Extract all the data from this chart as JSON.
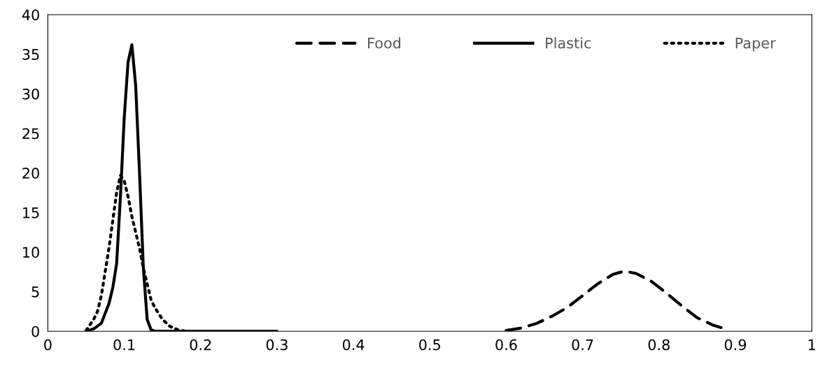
{
  "chart_data": {
    "type": "line",
    "series": [
      {
        "name": "Food",
        "color": "#000000",
        "line_style": "dashed",
        "x": [
          0.6,
          0.62,
          0.64,
          0.66,
          0.68,
          0.7,
          0.72,
          0.74,
          0.755,
          0.77,
          0.79,
          0.81,
          0.83,
          0.85,
          0.87,
          0.89
        ],
        "values": [
          0.1,
          0.4,
          1.0,
          1.9,
          3.0,
          4.5,
          6.0,
          7.2,
          7.6,
          7.3,
          6.3,
          4.8,
          3.2,
          1.7,
          0.8,
          0.2
        ]
      },
      {
        "name": "Plastic",
        "color": "#000000",
        "line_style": "solid",
        "x": [
          0.05,
          0.06,
          0.07,
          0.08,
          0.085,
          0.09,
          0.095,
          0.1,
          0.105,
          0.11,
          0.115,
          0.12,
          0.125,
          0.13,
          0.135,
          0.14,
          0.2,
          0.3
        ],
        "values": [
          0.0,
          0.3,
          1.0,
          3.5,
          5.5,
          8.5,
          17,
          27,
          34,
          36.2,
          31,
          20,
          8,
          1.5,
          0.2,
          0,
          0,
          0
        ]
      },
      {
        "name": "Paper",
        "color": "#000000",
        "line_style": "dotted",
        "x": [
          0.05,
          0.06,
          0.065,
          0.07,
          0.075,
          0.08,
          0.085,
          0.09,
          0.095,
          0.1,
          0.105,
          0.11,
          0.115,
          0.12,
          0.125,
          0.13,
          0.135,
          0.14,
          0.15,
          0.16,
          0.17,
          0.18
        ],
        "values": [
          0.1,
          1.5,
          2.5,
          4.5,
          7.5,
          10.5,
          14,
          17.5,
          19.7,
          19,
          17,
          14.5,
          12.5,
          10.5,
          8,
          6,
          4,
          3,
          1.5,
          0.6,
          0.2,
          0
        ]
      }
    ],
    "xlim": [
      0,
      1
    ],
    "xticks": [
      0,
      0.1,
      0.2,
      0.3,
      0.4,
      0.5,
      0.6,
      0.7,
      0.8,
      0.9,
      1
    ],
    "ylim": [
      0,
      40
    ],
    "yticks": [
      0,
      5,
      10,
      15,
      20,
      25,
      30,
      35,
      40
    ],
    "grid": false,
    "legend": "top right"
  }
}
